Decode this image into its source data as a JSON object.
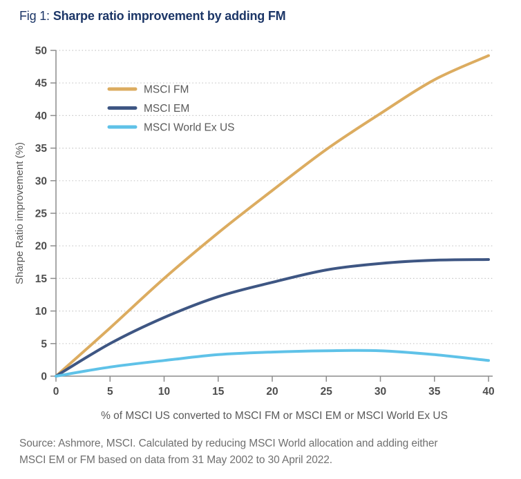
{
  "title": {
    "prefix": "Fig 1:",
    "text": "Sharpe ratio improvement by adding FM"
  },
  "source": {
    "line1": "Source: Ashmore, MSCI. Calculated by reducing MSCI World allocation and adding either",
    "line2": "MSCI EM or FM based on data from 31 May 2002 to 30 April 2022."
  },
  "colors": {
    "title_navy": "#1c3667",
    "axis_line": "#8c8c8c",
    "tick_label": "#4d4d4d",
    "axis_title": "#595959",
    "legend_label": "#595959",
    "gridline": "#c5c5c5",
    "source_gray": "#6f6f6f"
  },
  "chart_data": {
    "type": "line",
    "title": "Fig 1: Sharpe ratio improvement by adding FM",
    "xlabel": "% of MSCI US converted to MSCI FM or MSCI EM or MSCI World Ex US",
    "ylabel": "Sharpe Ratio improvement (%)",
    "xlim": [
      0,
      40
    ],
    "ylim": [
      0,
      50
    ],
    "xticks": [
      0,
      5,
      10,
      15,
      20,
      25,
      30,
      35,
      40
    ],
    "yticks": [
      0,
      5,
      10,
      15,
      20,
      25,
      30,
      35,
      40,
      45,
      50
    ],
    "grid": "horizontal-dotted",
    "legend_position": "inside-top-left",
    "x": [
      0,
      5,
      10,
      15,
      20,
      25,
      30,
      35,
      40
    ],
    "series": [
      {
        "name": "MSCI FM",
        "color": "#dcac60",
        "values": [
          0,
          7.4,
          15.0,
          22.0,
          28.5,
          34.8,
          40.3,
          45.5,
          49.2
        ]
      },
      {
        "name": "MSCI EM",
        "color": "#3e5683",
        "values": [
          0,
          5.0,
          9.0,
          12.2,
          14.4,
          16.3,
          17.3,
          17.8,
          17.9
        ]
      },
      {
        "name": "MSCI World Ex US",
        "color": "#5fc2e8",
        "values": [
          0,
          1.4,
          2.4,
          3.3,
          3.7,
          3.9,
          3.9,
          3.3,
          2.4
        ]
      }
    ]
  }
}
